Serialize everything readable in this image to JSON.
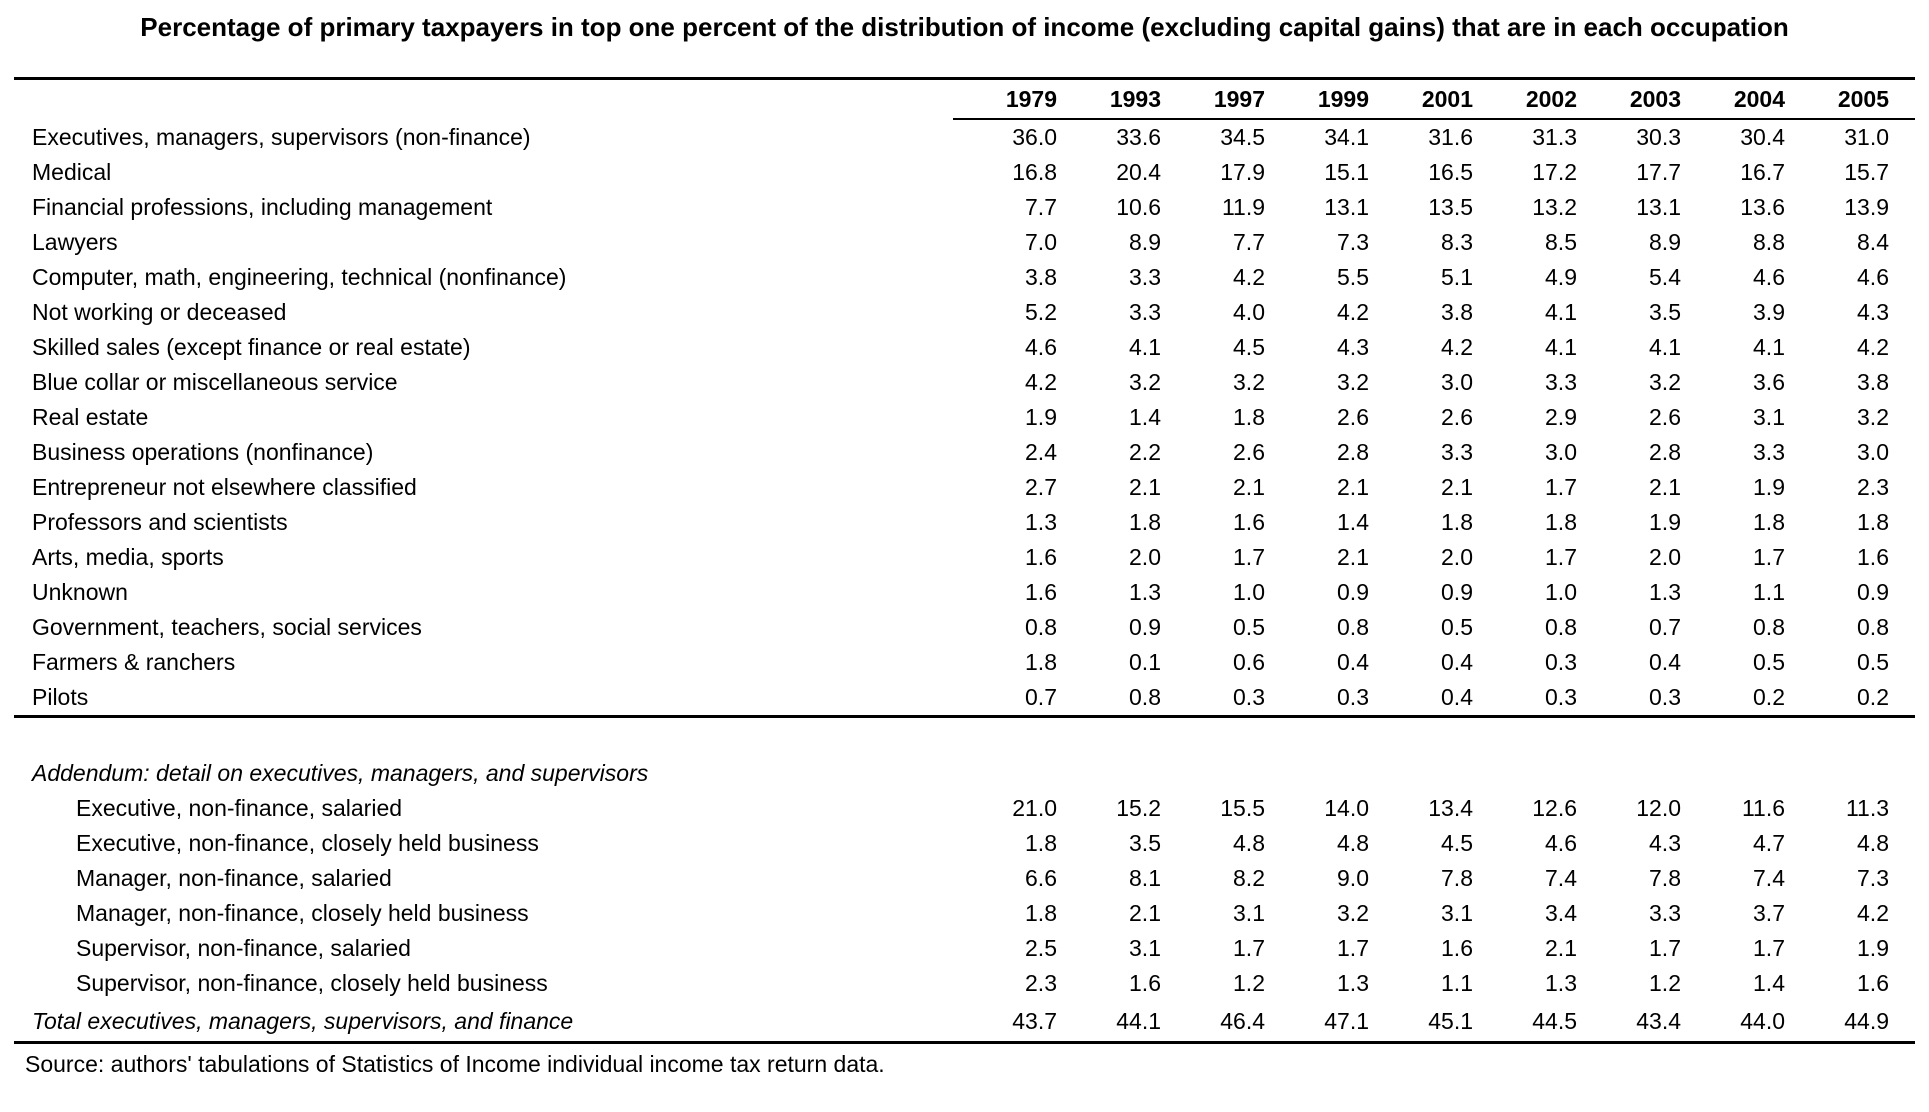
{
  "title": "Percentage of primary taxpayers in top one percent of the distribution of income (excluding capital gains) that are in each occupation",
  "years": [
    "1979",
    "1993",
    "1997",
    "1999",
    "2001",
    "2002",
    "2003",
    "2004",
    "2005"
  ],
  "rows": [
    {
      "label": "Executives, managers, supervisors (non-finance)",
      "values": [
        "36.0",
        "33.6",
        "34.5",
        "34.1",
        "31.6",
        "31.3",
        "30.3",
        "30.4",
        "31.0"
      ]
    },
    {
      "label": "Medical",
      "values": [
        "16.8",
        "20.4",
        "17.9",
        "15.1",
        "16.5",
        "17.2",
        "17.7",
        "16.7",
        "15.7"
      ]
    },
    {
      "label": "Financial professions, including management",
      "values": [
        "7.7",
        "10.6",
        "11.9",
        "13.1",
        "13.5",
        "13.2",
        "13.1",
        "13.6",
        "13.9"
      ]
    },
    {
      "label": "Lawyers",
      "values": [
        "7.0",
        "8.9",
        "7.7",
        "7.3",
        "8.3",
        "8.5",
        "8.9",
        "8.8",
        "8.4"
      ]
    },
    {
      "label": "Computer, math, engineering, technical (nonfinance)",
      "values": [
        "3.8",
        "3.3",
        "4.2",
        "5.5",
        "5.1",
        "4.9",
        "5.4",
        "4.6",
        "4.6"
      ]
    },
    {
      "label": "Not working or deceased",
      "values": [
        "5.2",
        "3.3",
        "4.0",
        "4.2",
        "3.8",
        "4.1",
        "3.5",
        "3.9",
        "4.3"
      ]
    },
    {
      "label": "Skilled sales (except finance or real estate)",
      "values": [
        "4.6",
        "4.1",
        "4.5",
        "4.3",
        "4.2",
        "4.1",
        "4.1",
        "4.1",
        "4.2"
      ]
    },
    {
      "label": "Blue collar or miscellaneous service",
      "values": [
        "4.2",
        "3.2",
        "3.2",
        "3.2",
        "3.0",
        "3.3",
        "3.2",
        "3.6",
        "3.8"
      ]
    },
    {
      "label": "Real estate",
      "values": [
        "1.9",
        "1.4",
        "1.8",
        "2.6",
        "2.6",
        "2.9",
        "2.6",
        "3.1",
        "3.2"
      ]
    },
    {
      "label": "Business operations (nonfinance)",
      "values": [
        "2.4",
        "2.2",
        "2.6",
        "2.8",
        "3.3",
        "3.0",
        "2.8",
        "3.3",
        "3.0"
      ]
    },
    {
      "label": "Entrepreneur not elsewhere classified",
      "values": [
        "2.7",
        "2.1",
        "2.1",
        "2.1",
        "2.1",
        "1.7",
        "2.1",
        "1.9",
        "2.3"
      ]
    },
    {
      "label": "Professors and scientists",
      "values": [
        "1.3",
        "1.8",
        "1.6",
        "1.4",
        "1.8",
        "1.8",
        "1.9",
        "1.8",
        "1.8"
      ]
    },
    {
      "label": "Arts, media, sports",
      "values": [
        "1.6",
        "2.0",
        "1.7",
        "2.1",
        "2.0",
        "1.7",
        "2.0",
        "1.7",
        "1.6"
      ]
    },
    {
      "label": "Unknown",
      "values": [
        "1.6",
        "1.3",
        "1.0",
        "0.9",
        "0.9",
        "1.0",
        "1.3",
        "1.1",
        "0.9"
      ]
    },
    {
      "label": "Government, teachers, social services",
      "values": [
        "0.8",
        "0.9",
        "0.5",
        "0.8",
        "0.5",
        "0.8",
        "0.7",
        "0.8",
        "0.8"
      ]
    },
    {
      "label": "Farmers & ranchers",
      "values": [
        "1.8",
        "0.1",
        "0.6",
        "0.4",
        "0.4",
        "0.3",
        "0.4",
        "0.5",
        "0.5"
      ]
    },
    {
      "label": "Pilots",
      "values": [
        "0.7",
        "0.8",
        "0.3",
        "0.3",
        "0.4",
        "0.3",
        "0.3",
        "0.2",
        "0.2"
      ]
    }
  ],
  "addendum": {
    "header": "Addendum: detail on executives, managers, and supervisors",
    "rows": [
      {
        "label": "Executive, non-finance, salaried",
        "values": [
          "21.0",
          "15.2",
          "15.5",
          "14.0",
          "13.4",
          "12.6",
          "12.0",
          "11.6",
          "11.3"
        ]
      },
      {
        "label": "Executive, non-finance, closely held business",
        "values": [
          "1.8",
          "3.5",
          "4.8",
          "4.8",
          "4.5",
          "4.6",
          "4.3",
          "4.7",
          "4.8"
        ]
      },
      {
        "label": "Manager, non-finance, salaried",
        "values": [
          "6.6",
          "8.1",
          "8.2",
          "9.0",
          "7.8",
          "7.4",
          "7.8",
          "7.4",
          "7.3"
        ]
      },
      {
        "label": "Manager, non-finance, closely held business",
        "values": [
          "1.8",
          "2.1",
          "3.1",
          "3.2",
          "3.1",
          "3.4",
          "3.3",
          "3.7",
          "4.2"
        ]
      },
      {
        "label": "Supervisor, non-finance, salaried",
        "values": [
          "2.5",
          "3.1",
          "1.7",
          "1.7",
          "1.6",
          "2.1",
          "1.7",
          "1.7",
          "1.9"
        ]
      },
      {
        "label": "Supervisor, non-finance, closely held business",
        "values": [
          "2.3",
          "1.6",
          "1.2",
          "1.3",
          "1.1",
          "1.3",
          "1.2",
          "1.4",
          "1.6"
        ]
      }
    ],
    "total": {
      "label": "Total executives, managers, supervisors, and finance",
      "values": [
        "43.7",
        "44.1",
        "46.4",
        "47.1",
        "45.1",
        "44.5",
        "43.4",
        "44.0",
        "44.9"
      ]
    }
  },
  "source": "Source: authors' tabulations of Statistics of Income individual income tax return data."
}
